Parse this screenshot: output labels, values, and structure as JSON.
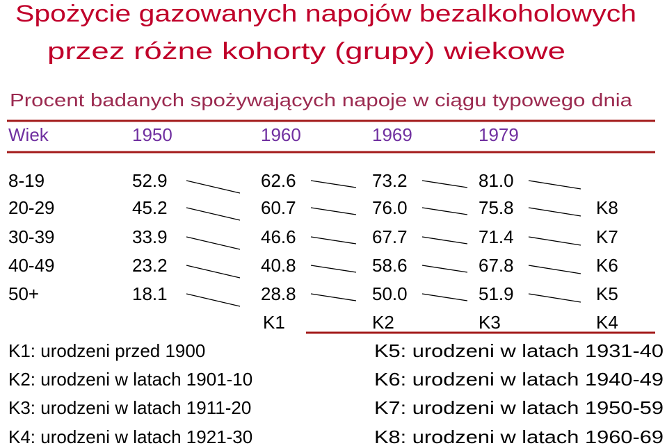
{
  "title": [
    "Spożycie gazowanych napojów bezalkoholowych",
    "przez różne kohorty (grupy) wiekowe"
  ],
  "subtitle": "Procent badanych spożywających napoje w ciągu typowego dnia",
  "table": {
    "header": [
      "Wiek",
      "1950",
      "1960",
      "1969",
      "1979"
    ],
    "rows": [
      [
        "8-19",
        "52.9",
        "62.6",
        "73.2",
        "81.0"
      ],
      [
        "20-29",
        "45.2",
        "60.7",
        "76.0",
        "75.8"
      ],
      [
        "30-39",
        "33.9",
        "46.6",
        "67.7",
        "71.4"
      ],
      [
        "40-49",
        "23.2",
        "40.8",
        "58.6",
        "67.8"
      ],
      [
        "50+",
        "18.1",
        "28.8",
        "50.0",
        "51.9"
      ]
    ]
  },
  "cohort_labels": {
    "right": [
      "K8",
      "K7",
      "K6",
      "K5",
      "K4"
    ],
    "bottom": [
      "K1",
      "K2",
      "K3"
    ]
  },
  "legend": {
    "left": [
      "K1: urodzeni przed 1900",
      "K2: urodzeni w latach 1901-10",
      "K3: urodzeni w latach 1911-20",
      "K4: urodzeni w latach 1921-30"
    ],
    "right": [
      "K5: urodzeni w latach 1931-40",
      "K6: urodzeni w latach 1940-49",
      "K7: urodzeni w latach 1950-59",
      "K8: urodzeni w latach 1960-69"
    ]
  }
}
